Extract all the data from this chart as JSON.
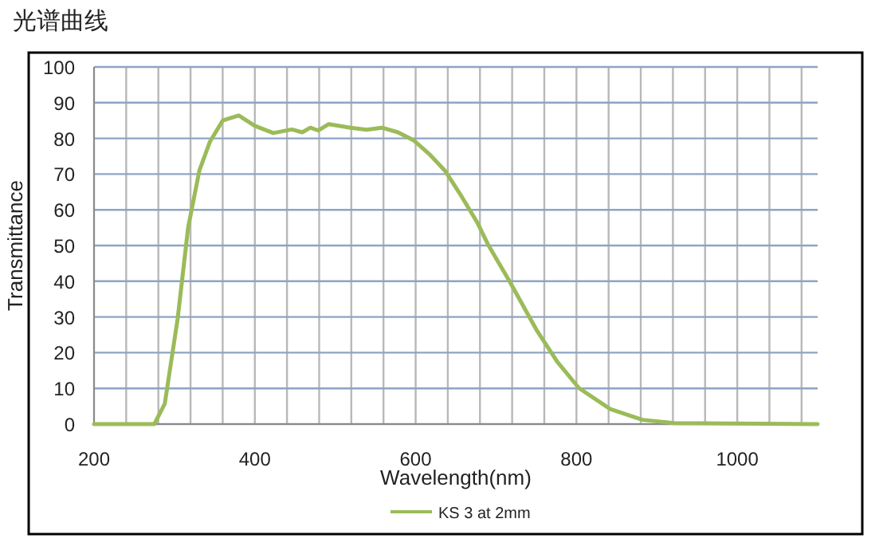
{
  "chart_data": {
    "type": "line",
    "title": "光谱曲线",
    "xlabel": "Wavelength(nm)",
    "ylabel": "Transmittance",
    "xlim": [
      200,
      1100
    ],
    "ylim": [
      0,
      100
    ],
    "xticks": [
      200,
      {
        "value": 240,
        "label": null
      },
      {
        "value": 280,
        "label": null
      },
      {
        "value": 320,
        "label": null
      },
      {
        "value": 360,
        "label": null
      },
      400,
      {
        "value": 440,
        "label": null
      },
      {
        "value": 480,
        "label": null
      },
      {
        "value": 520,
        "label": null
      },
      {
        "value": 560,
        "label": null
      },
      600,
      {
        "value": 640,
        "label": null
      },
      {
        "value": 680,
        "label": null
      },
      {
        "value": 720,
        "label": null
      },
      {
        "value": 760,
        "label": null
      },
      800,
      {
        "value": 840,
        "label": null
      },
      {
        "value": 880,
        "label": null
      },
      {
        "value": 920,
        "label": null
      },
      {
        "value": 960,
        "label": null
      },
      1000,
      {
        "value": 1040,
        "label": null
      },
      {
        "value": 1080,
        "label": null
      }
    ],
    "yticks": [
      0,
      10,
      20,
      30,
      40,
      50,
      60,
      70,
      80,
      90,
      100
    ],
    "grid": true,
    "legend": "bottom",
    "marker": "none",
    "line_style": "solid",
    "series": [
      {
        "name": "KS 3 at 2mm",
        "color": "#9bbb59",
        "x": [
          200,
          275,
          288,
          304,
          317,
          331,
          344,
          360,
          380,
          400,
          423,
          446,
          459,
          469,
          479,
          492,
          519,
          539,
          558,
          578,
          598,
          617,
          637,
          657,
          677,
          690,
          717,
          750,
          776,
          803,
          842,
          882,
          921,
          1100
        ],
        "values": [
          0,
          0,
          5.7,
          29.5,
          55,
          71,
          79,
          85,
          86.4,
          83.5,
          81.5,
          82.5,
          81.7,
          83,
          82.2,
          84,
          83,
          82.4,
          83,
          81.7,
          79.4,
          75.6,
          70.8,
          63.8,
          56.3,
          50.3,
          39.9,
          26.5,
          17.5,
          10.1,
          4.2,
          1.2,
          0.3,
          0
        ]
      }
    ]
  }
}
